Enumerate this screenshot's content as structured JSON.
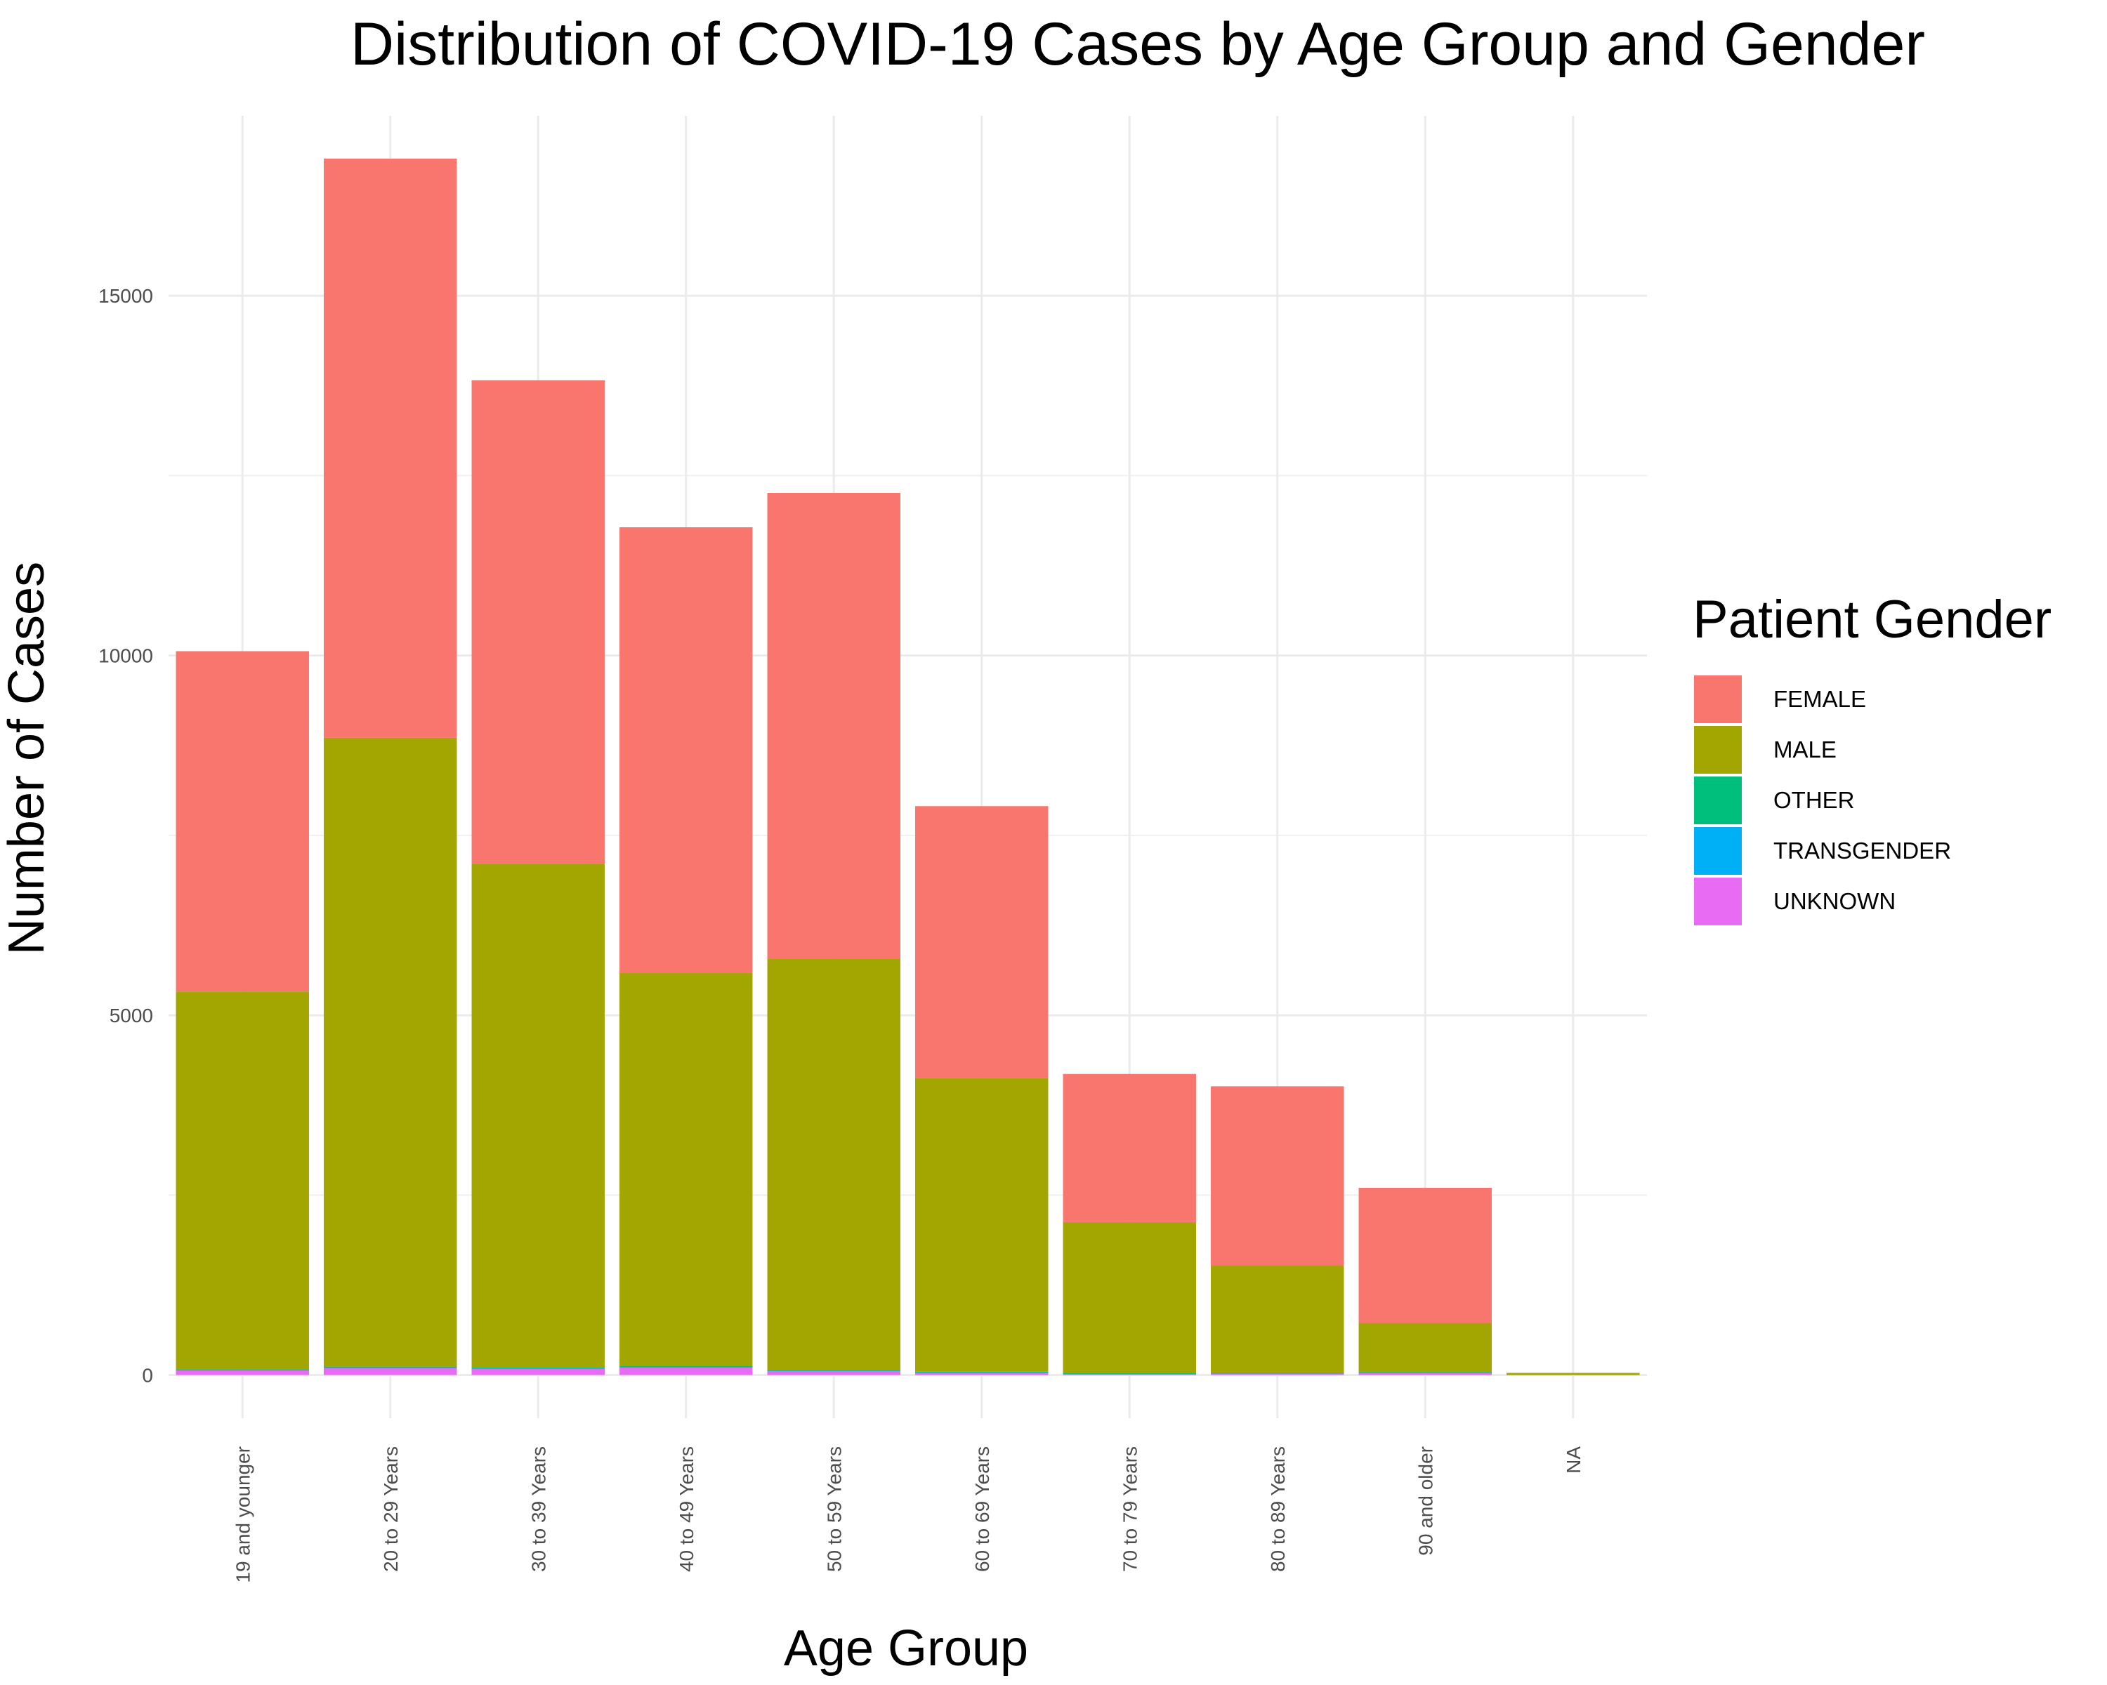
{
  "chart_data": {
    "type": "bar",
    "stacked": true,
    "title": "Distribution of COVID-19 Cases by Age Group and Gender",
    "xlabel": "Age Group",
    "ylabel": "Number of Cases",
    "ylim": [
      -600,
      17500
    ],
    "yticks": [
      0,
      5000,
      10000,
      15000
    ],
    "grid": true,
    "legend_title": "Patient Gender",
    "legend_position": "right",
    "categories": [
      "19 and younger",
      "20 to 29 Years",
      "30 to 39 Years",
      "40 to 49 Years",
      "50 to 59 Years",
      "60 to 69 Years",
      "70 to 79 Years",
      "80 to 89 Years",
      "90 and older",
      "NA"
    ],
    "series": [
      {
        "name": "FEMALE",
        "color": "#F8766D",
        "values": [
          4730,
          8050,
          6720,
          6190,
          6470,
          3780,
          2060,
          2490,
          1880,
          0
        ]
      },
      {
        "name": "MALE",
        "color": "#A3A500",
        "values": [
          5250,
          8740,
          7000,
          5470,
          5720,
          4080,
          2100,
          1490,
          680,
          30
        ]
      },
      {
        "name": "OTHER",
        "color": "#00BF7D",
        "values": [
          5,
          8,
          8,
          6,
          5,
          3,
          2,
          1,
          1,
          0
        ]
      },
      {
        "name": "TRANSGENDER",
        "color": "#00B0F6",
        "values": [
          5,
          8,
          8,
          6,
          5,
          3,
          2,
          1,
          1,
          0
        ]
      },
      {
        "name": "UNKNOWN",
        "color": "#E76BF3",
        "values": [
          70,
          100,
          90,
          110,
          60,
          40,
          20,
          30,
          40,
          0
        ]
      }
    ]
  }
}
